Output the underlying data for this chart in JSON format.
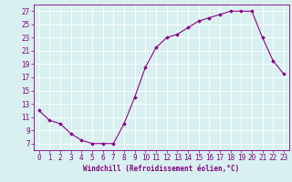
{
  "x": [
    0,
    1,
    2,
    3,
    4,
    5,
    6,
    7,
    8,
    9,
    10,
    11,
    12,
    13,
    14,
    15,
    16,
    17,
    18,
    19,
    20,
    21,
    22,
    23
  ],
  "y": [
    12,
    10.5,
    10,
    8.5,
    7.5,
    7,
    7,
    7,
    10,
    14,
    18.5,
    21.5,
    23,
    23.5,
    24.5,
    25.5,
    26,
    26.5,
    27,
    27,
    27,
    23,
    19.5,
    17.5
  ],
  "line_color": "#8B008B",
  "marker": "D",
  "marker_size": 1.8,
  "linewidth": 0.8,
  "xlabel": "Windchill (Refroidissement éolien,°C)",
  "xlim": [
    -0.5,
    23.5
  ],
  "ylim": [
    6,
    28
  ],
  "yticks": [
    7,
    9,
    11,
    13,
    15,
    17,
    19,
    21,
    23,
    25,
    27
  ],
  "xticks": [
    0,
    1,
    2,
    3,
    4,
    5,
    6,
    7,
    8,
    9,
    10,
    11,
    12,
    13,
    14,
    15,
    16,
    17,
    18,
    19,
    20,
    21,
    22,
    23
  ],
  "bg_color": "#d8f0f0",
  "grid_color": "#ffffff",
  "tick_color": "#800080",
  "label_color": "#800080",
  "xlabel_fontsize": 5.5,
  "tick_fontsize": 5.5,
  "xlabel_fontweight": "bold"
}
